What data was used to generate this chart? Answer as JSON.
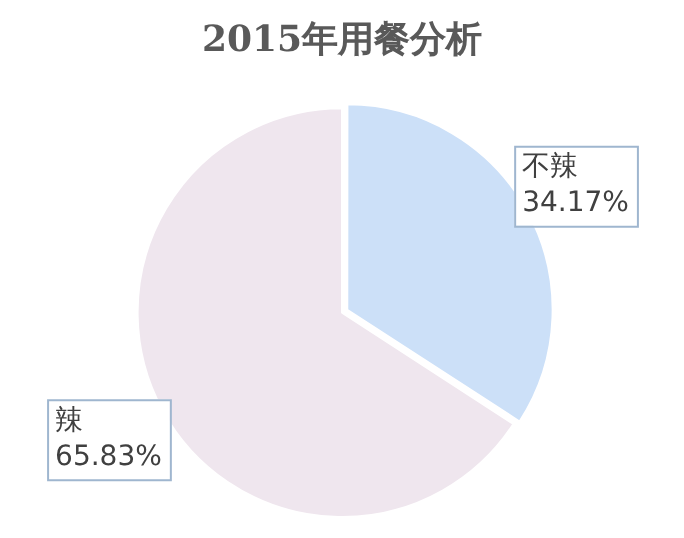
{
  "chart_data": {
    "type": "pie",
    "title": "2015年用餐分析",
    "categories": [
      "不辣",
      "辣"
    ],
    "values": [
      34.17,
      65.83
    ],
    "value_labels": [
      "34.17%",
      "65.83%"
    ],
    "colors": [
      "#cce0f8",
      "#efe6ee"
    ],
    "legend": false
  }
}
